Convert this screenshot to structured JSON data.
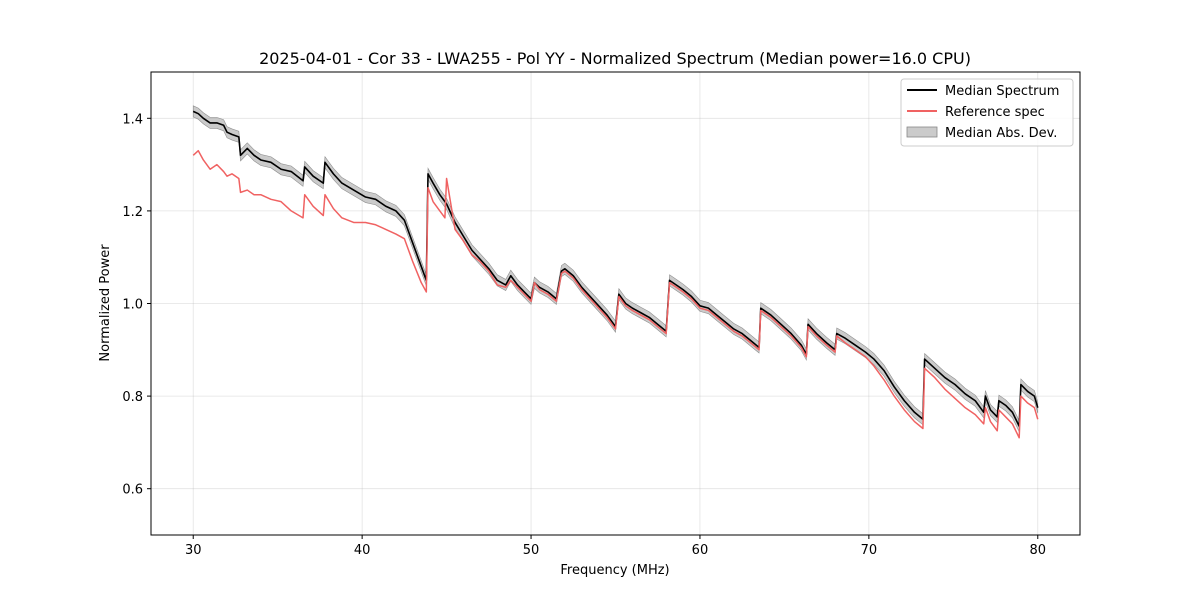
{
  "chart_data": {
    "type": "line",
    "title": "2025-04-01 - Cor 33 - LWA255 - Pol YY - Normalized Spectrum (Median power=16.0 CPU)",
    "xlabel": "Frequency (MHz)",
    "ylabel": "Normalized Power",
    "xlim": [
      27.5,
      82.5
    ],
    "ylim": [
      0.5,
      1.5
    ],
    "xticks": [
      30,
      40,
      50,
      60,
      70,
      80
    ],
    "xtick_labels": [
      "30",
      "40",
      "50",
      "60",
      "70",
      "80"
    ],
    "yticks": [
      0.6,
      0.8,
      1.0,
      1.2,
      1.4
    ],
    "ytick_labels": [
      "0.6",
      "0.8",
      "1.0",
      "1.2",
      "1.4"
    ],
    "grid": true,
    "legend_position": "top-right",
    "legend": [
      "Median Spectrum",
      "Reference spec",
      "Median Abs. Dev."
    ],
    "series": [
      {
        "name": "Median Spectrum",
        "color": "#000000",
        "x": [
          30.0,
          30.3,
          30.6,
          31.0,
          31.4,
          31.8,
          32.0,
          32.3,
          32.7,
          32.8,
          33.2,
          33.6,
          34.0,
          34.6,
          35.2,
          35.8,
          36.5,
          36.6,
          37.1,
          37.7,
          37.8,
          38.3,
          38.8,
          39.5,
          40.2,
          40.8,
          41.4,
          42.0,
          42.5,
          43.0,
          43.5,
          43.8,
          43.9,
          44.2,
          44.6,
          44.9,
          45.0,
          45.5,
          46.0,
          46.5,
          47.0,
          47.5,
          48.0,
          48.5,
          48.8,
          49.2,
          49.6,
          50.0,
          50.2,
          50.5,
          51.0,
          51.5,
          51.8,
          52.0,
          52.5,
          53.0,
          53.5,
          54.0,
          54.5,
          55.0,
          55.2,
          55.6,
          56.0,
          56.5,
          57.0,
          57.5,
          58.0,
          58.2,
          58.6,
          59.0,
          59.5,
          60.0,
          60.5,
          61.0,
          61.5,
          62.0,
          62.5,
          63.0,
          63.5,
          63.6,
          64.2,
          64.8,
          65.4,
          66.0,
          66.3,
          66.4,
          66.9,
          67.5,
          68.0,
          68.1,
          68.6,
          69.2,
          69.8,
          70.3,
          70.9,
          71.5,
          72.1,
          72.7,
          73.2,
          73.3,
          73.9,
          74.5,
          75.1,
          75.7,
          76.3,
          76.8,
          76.9,
          77.2,
          77.6,
          77.7,
          78.1,
          78.5,
          78.9,
          79.0,
          79.4,
          79.8,
          80.0
        ],
        "y": [
          1.415,
          1.41,
          1.4,
          1.39,
          1.39,
          1.385,
          1.37,
          1.365,
          1.36,
          1.32,
          1.335,
          1.32,
          1.31,
          1.305,
          1.29,
          1.285,
          1.265,
          1.295,
          1.275,
          1.26,
          1.305,
          1.28,
          1.26,
          1.245,
          1.23,
          1.225,
          1.21,
          1.2,
          1.18,
          1.13,
          1.08,
          1.05,
          1.28,
          1.26,
          1.235,
          1.22,
          1.215,
          1.175,
          1.145,
          1.115,
          1.095,
          1.075,
          1.05,
          1.04,
          1.06,
          1.04,
          1.025,
          1.01,
          1.045,
          1.035,
          1.025,
          1.01,
          1.07,
          1.075,
          1.06,
          1.035,
          1.015,
          0.995,
          0.975,
          0.95,
          1.02,
          1.0,
          0.99,
          0.98,
          0.97,
          0.955,
          0.94,
          1.05,
          1.04,
          1.03,
          1.015,
          0.995,
          0.99,
          0.975,
          0.96,
          0.945,
          0.935,
          0.92,
          0.905,
          0.99,
          0.975,
          0.955,
          0.935,
          0.91,
          0.89,
          0.955,
          0.935,
          0.915,
          0.9,
          0.935,
          0.925,
          0.91,
          0.895,
          0.88,
          0.855,
          0.82,
          0.79,
          0.765,
          0.75,
          0.88,
          0.86,
          0.84,
          0.825,
          0.805,
          0.79,
          0.765,
          0.8,
          0.77,
          0.755,
          0.79,
          0.78,
          0.765,
          0.735,
          0.825,
          0.81,
          0.8,
          0.775
        ]
      },
      {
        "name": "Reference spec",
        "color": "#f06262",
        "x": [
          30.0,
          30.3,
          30.6,
          31.0,
          31.4,
          31.8,
          32.0,
          32.3,
          32.7,
          32.8,
          33.2,
          33.6,
          34.0,
          34.6,
          35.2,
          35.8,
          36.5,
          36.6,
          37.1,
          37.7,
          37.8,
          38.3,
          38.8,
          39.5,
          40.2,
          40.8,
          41.4,
          42.0,
          42.5,
          43.0,
          43.5,
          43.8,
          43.9,
          44.2,
          44.6,
          44.9,
          45.0,
          45.5,
          46.0,
          46.5,
          47.0,
          47.5,
          48.0,
          48.5,
          48.8,
          49.2,
          49.6,
          50.0,
          50.2,
          50.5,
          51.0,
          51.5,
          51.8,
          52.0,
          52.5,
          53.0,
          53.5,
          54.0,
          54.5,
          55.0,
          55.2,
          55.6,
          56.0,
          56.5,
          57.0,
          57.5,
          58.0,
          58.2,
          58.6,
          59.0,
          59.5,
          60.0,
          60.5,
          61.0,
          61.5,
          62.0,
          62.5,
          63.0,
          63.5,
          63.6,
          64.2,
          64.8,
          65.4,
          66.0,
          66.3,
          66.4,
          66.9,
          67.5,
          68.0,
          68.1,
          68.6,
          69.2,
          69.8,
          70.3,
          70.9,
          71.5,
          72.1,
          72.7,
          73.2,
          73.3,
          73.9,
          74.5,
          75.1,
          75.7,
          76.3,
          76.8,
          76.9,
          77.2,
          77.6,
          77.7,
          78.1,
          78.5,
          78.9,
          79.0,
          79.4,
          79.8,
          80.0
        ],
        "y": [
          1.32,
          1.33,
          1.31,
          1.29,
          1.3,
          1.285,
          1.275,
          1.28,
          1.27,
          1.24,
          1.245,
          1.235,
          1.235,
          1.225,
          1.22,
          1.2,
          1.185,
          1.235,
          1.21,
          1.19,
          1.235,
          1.205,
          1.185,
          1.175,
          1.175,
          1.17,
          1.16,
          1.15,
          1.14,
          1.09,
          1.045,
          1.025,
          1.25,
          1.22,
          1.2,
          1.185,
          1.27,
          1.16,
          1.135,
          1.105,
          1.09,
          1.07,
          1.04,
          1.035,
          1.05,
          1.035,
          1.02,
          1.005,
          1.045,
          1.03,
          1.02,
          1.005,
          1.065,
          1.07,
          1.055,
          1.03,
          1.01,
          0.99,
          0.97,
          0.945,
          1.015,
          0.995,
          0.985,
          0.975,
          0.965,
          0.95,
          0.935,
          1.045,
          1.035,
          1.025,
          1.01,
          0.99,
          0.985,
          0.97,
          0.955,
          0.94,
          0.93,
          0.915,
          0.9,
          0.985,
          0.97,
          0.95,
          0.93,
          0.905,
          0.885,
          0.95,
          0.93,
          0.91,
          0.895,
          0.93,
          0.915,
          0.9,
          0.885,
          0.865,
          0.835,
          0.8,
          0.77,
          0.745,
          0.73,
          0.86,
          0.84,
          0.815,
          0.795,
          0.775,
          0.76,
          0.74,
          0.775,
          0.745,
          0.725,
          0.77,
          0.755,
          0.74,
          0.71,
          0.8,
          0.785,
          0.775,
          0.75
        ]
      }
    ],
    "band": {
      "name": "Median Abs. Dev.",
      "color": "#a0a0a0",
      "half_width": 0.012
    }
  }
}
